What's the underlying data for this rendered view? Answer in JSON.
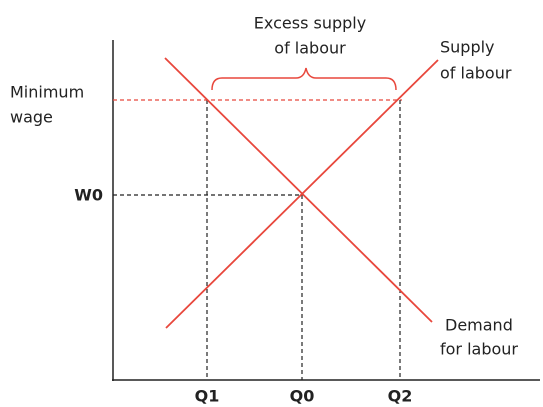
{
  "annotations": {
    "excess_supply": [
      "Excess supply",
      "of labour"
    ],
    "supply": [
      "Supply",
      "of labour"
    ],
    "minimum_wage": [
      "Minimum",
      "wage"
    ],
    "demand": [
      "Demand",
      "for labour"
    ],
    "wage_level": "W0",
    "quantities": [
      "Q1",
      "Q0",
      "Q2"
    ]
  }
}
